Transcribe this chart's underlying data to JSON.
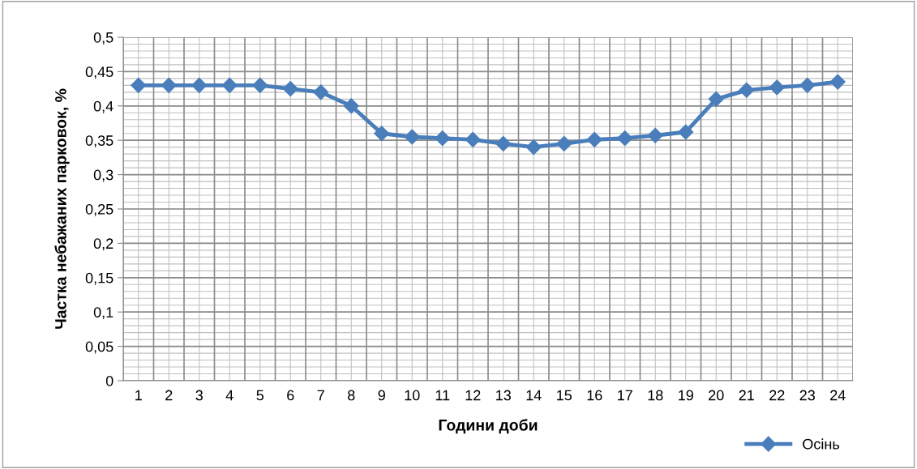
{
  "chart_data": {
    "type": "line",
    "xlabel": "Години доби",
    "ylabel": "Частка небажаних парковок, %",
    "categories": [
      "1",
      "2",
      "3",
      "4",
      "5",
      "6",
      "7",
      "8",
      "9",
      "10",
      "11",
      "12",
      "13",
      "14",
      "15",
      "16",
      "17",
      "18",
      "19",
      "20",
      "21",
      "22",
      "23",
      "24"
    ],
    "series": [
      {
        "name": "Осінь",
        "color": "#4a7ebb",
        "values": [
          0.43,
          0.43,
          0.43,
          0.43,
          0.43,
          0.425,
          0.42,
          0.4,
          0.36,
          0.355,
          0.353,
          0.351,
          0.345,
          0.34,
          0.345,
          0.351,
          0.353,
          0.357,
          0.362,
          0.41,
          0.423,
          0.427,
          0.43,
          0.435
        ]
      }
    ],
    "ylim": [
      0,
      0.5
    ],
    "yticks": [
      0,
      {
        "value": 0.05,
        "label": "0,05"
      },
      {
        "value": 0.1,
        "label": "0,1"
      },
      {
        "value": 0.15,
        "label": "0,15"
      },
      {
        "value": 0.2,
        "label": "0,2"
      },
      {
        "value": 0.25,
        "label": "0,25"
      },
      {
        "value": 0.3,
        "label": "0,3"
      },
      {
        "value": 0.35,
        "label": "0,35"
      },
      {
        "value": 0.4,
        "label": "0,4"
      },
      {
        "value": 0.45,
        "label": "0,45"
      },
      {
        "value": 0.5,
        "label": "0,5"
      }
    ],
    "grid": true,
    "legend": "bottom right",
    "marker": "diamond",
    "line_style": "solid"
  }
}
